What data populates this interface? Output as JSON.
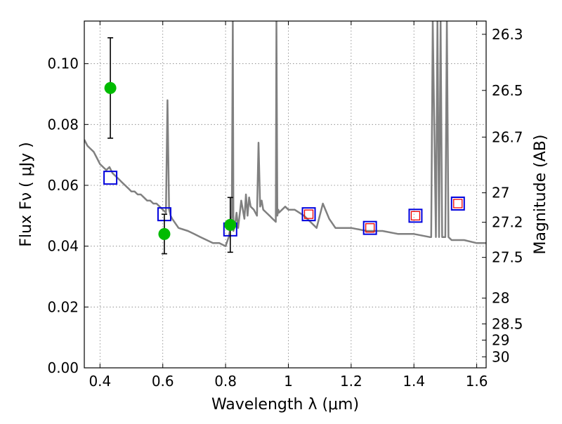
{
  "chart_data": {
    "type": "scatter",
    "title": "",
    "xlabel": "Wavelength  λ (μm)",
    "ylabel": "Flux  Fν  ( μJy )",
    "y2label": "Magnitude (AB)",
    "xlim": [
      0.35,
      1.63
    ],
    "ylim": [
      0.0,
      0.114
    ],
    "grid": true,
    "xticks": [
      0.4,
      0.6,
      0.8,
      1.0,
      1.2,
      1.4,
      1.6
    ],
    "xtick_labels": [
      "0.4",
      "0.6",
      "0.8",
      "1",
      "1.2",
      "1.4",
      "1.6"
    ],
    "yticks": [
      0.0,
      0.02,
      0.04,
      0.06,
      0.08,
      0.1
    ],
    "ytick_labels": [
      "0.00",
      "0.02",
      "0.04",
      "0.06",
      "0.08",
      "0.10"
    ],
    "y2ticks": [
      {
        "label": "26.3",
        "mag": 26.3
      },
      {
        "label": "26.5",
        "mag": 26.5
      },
      {
        "label": "26.7",
        "mag": 26.7
      },
      {
        "label": "27",
        "mag": 27.0
      },
      {
        "label": "27.2",
        "mag": 27.2
      },
      {
        "label": "27.5",
        "mag": 27.5
      },
      {
        "label": "28",
        "mag": 28.0
      },
      {
        "label": "28.5",
        "mag": 28.5
      },
      {
        "label": "29",
        "mag": 29.0
      },
      {
        "label": "30",
        "mag": 30.0
      }
    ],
    "colors": {
      "model": "#808080",
      "observed": "#00bb00",
      "model_phot": "#0000dd",
      "upper_limit": "#ee0000",
      "errorbar": "#000000",
      "grid": "#7f7f7f"
    },
    "series": [
      {
        "kind": "model_spectrum",
        "x": [
          0.35,
          0.36,
          0.37,
          0.38,
          0.39,
          0.4,
          0.41,
          0.42,
          0.43,
          0.44,
          0.45,
          0.46,
          0.47,
          0.48,
          0.49,
          0.5,
          0.51,
          0.52,
          0.53,
          0.54,
          0.55,
          0.56,
          0.57,
          0.58,
          0.59,
          0.6,
          0.61,
          0.615,
          0.62,
          0.625,
          0.63,
          0.65,
          0.68,
          0.7,
          0.72,
          0.74,
          0.76,
          0.78,
          0.8,
          0.81,
          0.815,
          0.82,
          0.823,
          0.825,
          0.83,
          0.835,
          0.84,
          0.85,
          0.86,
          0.865,
          0.87,
          0.875,
          0.88,
          0.89,
          0.9,
          0.905,
          0.91,
          0.915,
          0.92,
          0.93,
          0.94,
          0.95,
          0.96,
          0.962,
          0.965,
          0.968,
          0.97,
          0.98,
          0.99,
          1.0,
          1.02,
          1.05,
          1.07,
          1.09,
          1.11,
          1.13,
          1.15,
          1.2,
          1.25,
          1.3,
          1.35,
          1.4,
          1.45,
          1.455,
          1.46,
          1.47,
          1.475,
          1.48,
          1.485,
          1.49,
          1.5,
          1.505,
          1.51,
          1.52,
          1.56,
          1.6,
          1.63
        ],
        "y": [
          0.075,
          0.073,
          0.072,
          0.071,
          0.069,
          0.067,
          0.066,
          0.065,
          0.066,
          0.064,
          0.063,
          0.062,
          0.061,
          0.06,
          0.059,
          0.058,
          0.058,
          0.057,
          0.057,
          0.056,
          0.055,
          0.055,
          0.054,
          0.054,
          0.053,
          0.052,
          0.051,
          0.088,
          0.052,
          0.05,
          0.049,
          0.046,
          0.045,
          0.044,
          0.043,
          0.042,
          0.041,
          0.041,
          0.04,
          0.043,
          0.046,
          0.05,
          0.114,
          0.045,
          0.047,
          0.051,
          0.046,
          0.055,
          0.049,
          0.057,
          0.05,
          0.056,
          0.053,
          0.052,
          0.05,
          0.074,
          0.053,
          0.055,
          0.052,
          0.051,
          0.05,
          0.049,
          0.048,
          0.114,
          0.05,
          0.052,
          0.051,
          0.052,
          0.053,
          0.052,
          0.052,
          0.05,
          0.048,
          0.046,
          0.054,
          0.049,
          0.046,
          0.046,
          0.045,
          0.045,
          0.044,
          0.044,
          0.043,
          0.043,
          0.114,
          0.043,
          0.114,
          0.043,
          0.114,
          0.043,
          0.043,
          0.114,
          0.043,
          0.042,
          0.042,
          0.041,
          0.041
        ]
      },
      {
        "kind": "observed",
        "name": "",
        "x": [
          0.433,
          0.605,
          0.815
        ],
        "y": [
          0.092,
          0.044,
          0.047
        ],
        "yerr_low": [
          0.0755,
          0.0375,
          0.038
        ],
        "yerr_high": [
          0.1085,
          0.0505,
          0.056
        ]
      },
      {
        "kind": "model_photometry",
        "x": [
          0.433,
          0.605,
          0.815,
          1.065,
          1.26,
          1.405,
          1.54
        ],
        "y": [
          0.0625,
          0.0505,
          0.0455,
          0.0505,
          0.046,
          0.05,
          0.054
        ]
      },
      {
        "kind": "upper_limit",
        "x": [
          1.065,
          1.26,
          1.405,
          1.54
        ],
        "y": [
          0.0505,
          0.046,
          0.05,
          0.054
        ]
      }
    ]
  }
}
